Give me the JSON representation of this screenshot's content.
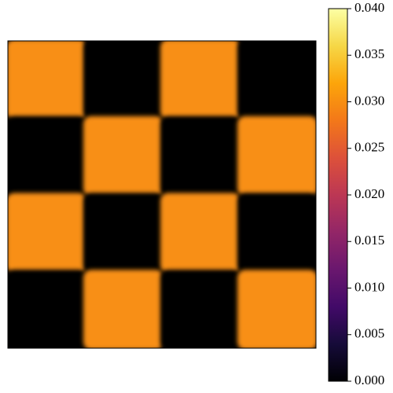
{
  "chart_data": {
    "type": "heatmap",
    "z": [
      [
        0.03,
        0,
        0.03,
        0
      ],
      [
        0,
        0.03,
        0,
        0.03
      ],
      [
        0.03,
        0,
        0.03,
        0
      ],
      [
        0,
        0.03,
        0,
        0.03
      ]
    ],
    "colormap": "inferno",
    "zlim": [
      0,
      0.04
    ],
    "zticks": [
      {
        "value": 0,
        "label": "0.000"
      },
      {
        "value": 0.005,
        "label": "0.005"
      },
      {
        "value": 0.01,
        "label": "0.010"
      },
      {
        "value": 0.015,
        "label": "0.015"
      },
      {
        "value": 0.02,
        "label": "0.020"
      },
      {
        "value": 0.025,
        "label": "0.025"
      },
      {
        "value": 0.03,
        "label": "0.030"
      },
      {
        "value": 0.035,
        "label": "0.035"
      },
      {
        "value": 0.04,
        "label": "0.040"
      }
    ]
  }
}
